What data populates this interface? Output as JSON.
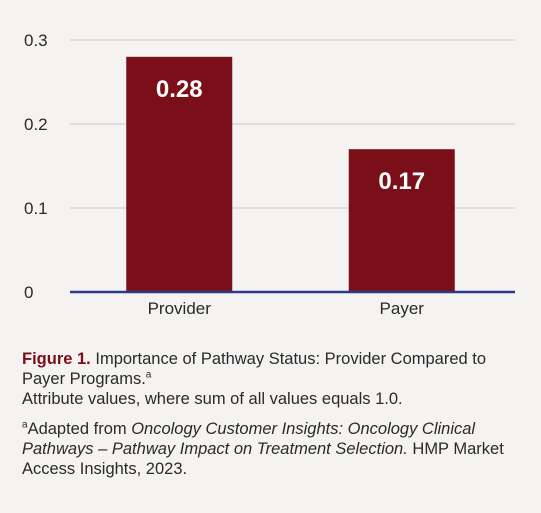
{
  "chart_data": {
    "type": "bar",
    "categories": [
      "Provider",
      "Payer"
    ],
    "values": [
      0.28,
      0.17
    ],
    "value_labels": [
      "0.28",
      "0.17"
    ],
    "ylim": [
      0,
      0.3
    ],
    "yticks": [
      0,
      0.1,
      0.2,
      0.3
    ],
    "ytick_labels": [
      "0",
      "0.1",
      "0.2",
      "0.3"
    ],
    "grid": true,
    "bar_color": "#7a0f1a",
    "baseline_color": "#2b3a8a",
    "grid_color": "#c8c8c8",
    "label_color": "#ffffff"
  },
  "caption": {
    "figure_label": "Figure 1.",
    "title_text": "Importance of Pathway Status: Provider Compared to Payer Programs.",
    "title_sup": "a",
    "description": "Attribute values, where sum of all values equals 1.0.",
    "source_sup": "a",
    "source_prefix": "Adapted from ",
    "source_italic": "Oncology Customer Insights: Oncology Clinical Pathways – Pathway Impact on Treatment Selection.",
    "source_suffix": " HMP Market Access Insights, 2023."
  }
}
